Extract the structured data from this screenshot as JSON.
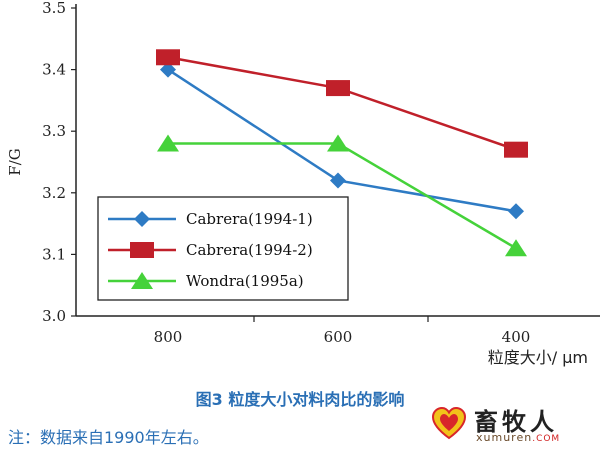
{
  "chart_data": {
    "type": "line",
    "categories": [
      "800",
      "600",
      "400"
    ],
    "ylabel": "F/G",
    "xlabel": "粒度大小/ μm",
    "ylim": [
      3.0,
      3.5
    ],
    "yticks": [
      "3.0",
      "3.1",
      "3.2",
      "3.3",
      "3.4",
      "3.5"
    ],
    "grid": false,
    "legend_position": "bottom-left",
    "series": [
      {
        "name": "Cabrera(1994-1)",
        "values": [
          3.4,
          3.22,
          3.17
        ],
        "color": "#2e7bc4",
        "marker": "diamond"
      },
      {
        "name": "Cabrera(1994-2)",
        "values": [
          3.42,
          3.37,
          3.27
        ],
        "color": "#c0202a",
        "marker": "square"
      },
      {
        "name": "Wondra(1995a)",
        "values": [
          3.28,
          3.28,
          3.11
        ],
        "color": "#45d23a",
        "marker": "triangle"
      }
    ]
  },
  "caption": "图3   粒度大小对料肉比的影响",
  "note": "注：数据来自1990年左右。",
  "watermark": {
    "name_cn": "畜牧人",
    "site": "xumuren",
    "site_tld": ".COM"
  }
}
